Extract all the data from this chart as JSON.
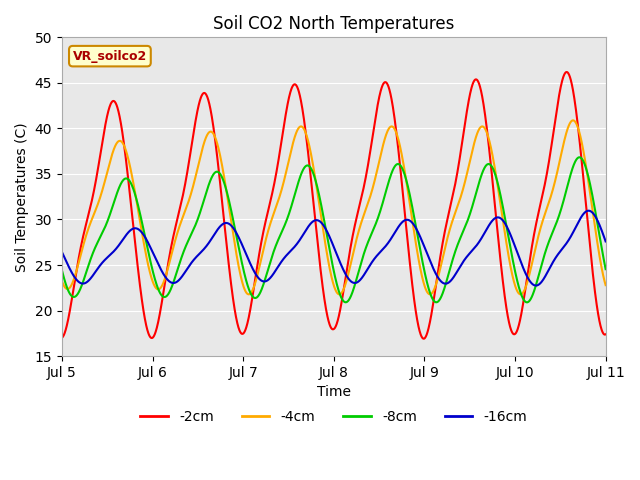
{
  "title": "Soil CO2 North Temperatures",
  "xlabel": "Time",
  "ylabel": "Soil Temperatures (C)",
  "ylim": [
    15,
    50
  ],
  "xlim": [
    0,
    6
  ],
  "bg_color": "#e8e8e8",
  "annotation_text": "VR_soilco2",
  "annotation_box_color": "#ffffcc",
  "annotation_border_color": "#cc8800",
  "annotation_text_color": "#aa0000",
  "tick_labels": [
    "Jul 5",
    "Jul 6",
    "Jul 7",
    "Jul 8",
    "Jul 9",
    "Jul 10",
    "Jul 11"
  ],
  "tick_positions": [
    0,
    1,
    2,
    3,
    4,
    5,
    6
  ],
  "yticks": [
    15,
    20,
    25,
    30,
    35,
    40,
    45,
    50
  ],
  "series": {
    "2cm": {
      "color": "#ff0000",
      "label": "-2cm",
      "mean": [
        30.0,
        30.0,
        31.0,
        31.5,
        31.0,
        31.5,
        32.0
      ],
      "amp": [
        12.0,
        12.0,
        12.5,
        12.5,
        13.0,
        13.0,
        13.5
      ],
      "phase": 0.28,
      "sharpness": 2.5
    },
    "4cm": {
      "color": "#ffaa00",
      "label": "-4cm",
      "mean": [
        30.5,
        30.5,
        31.0,
        31.0,
        31.0,
        31.0,
        31.5
      ],
      "amp": [
        7.5,
        7.5,
        8.5,
        8.5,
        8.5,
        8.5,
        9.0
      ],
      "phase": 0.35,
      "sharpness": 2.0
    },
    "8cm": {
      "color": "#00cc00",
      "label": "-8cm",
      "mean": [
        28.0,
        28.0,
        28.5,
        28.5,
        28.5,
        28.5,
        29.0
      ],
      "amp": [
        6.0,
        6.0,
        6.5,
        7.0,
        7.0,
        7.0,
        7.5
      ],
      "phase": 0.42,
      "sharpness": 1.5
    },
    "16cm": {
      "color": "#0000cc",
      "label": "-16cm",
      "mean": [
        26.0,
        26.0,
        26.5,
        26.5,
        26.5,
        26.5,
        27.0
      ],
      "amp": [
        2.8,
        2.8,
        3.0,
        3.2,
        3.2,
        3.5,
        3.8
      ],
      "phase": 0.52,
      "sharpness": 1.0
    }
  }
}
